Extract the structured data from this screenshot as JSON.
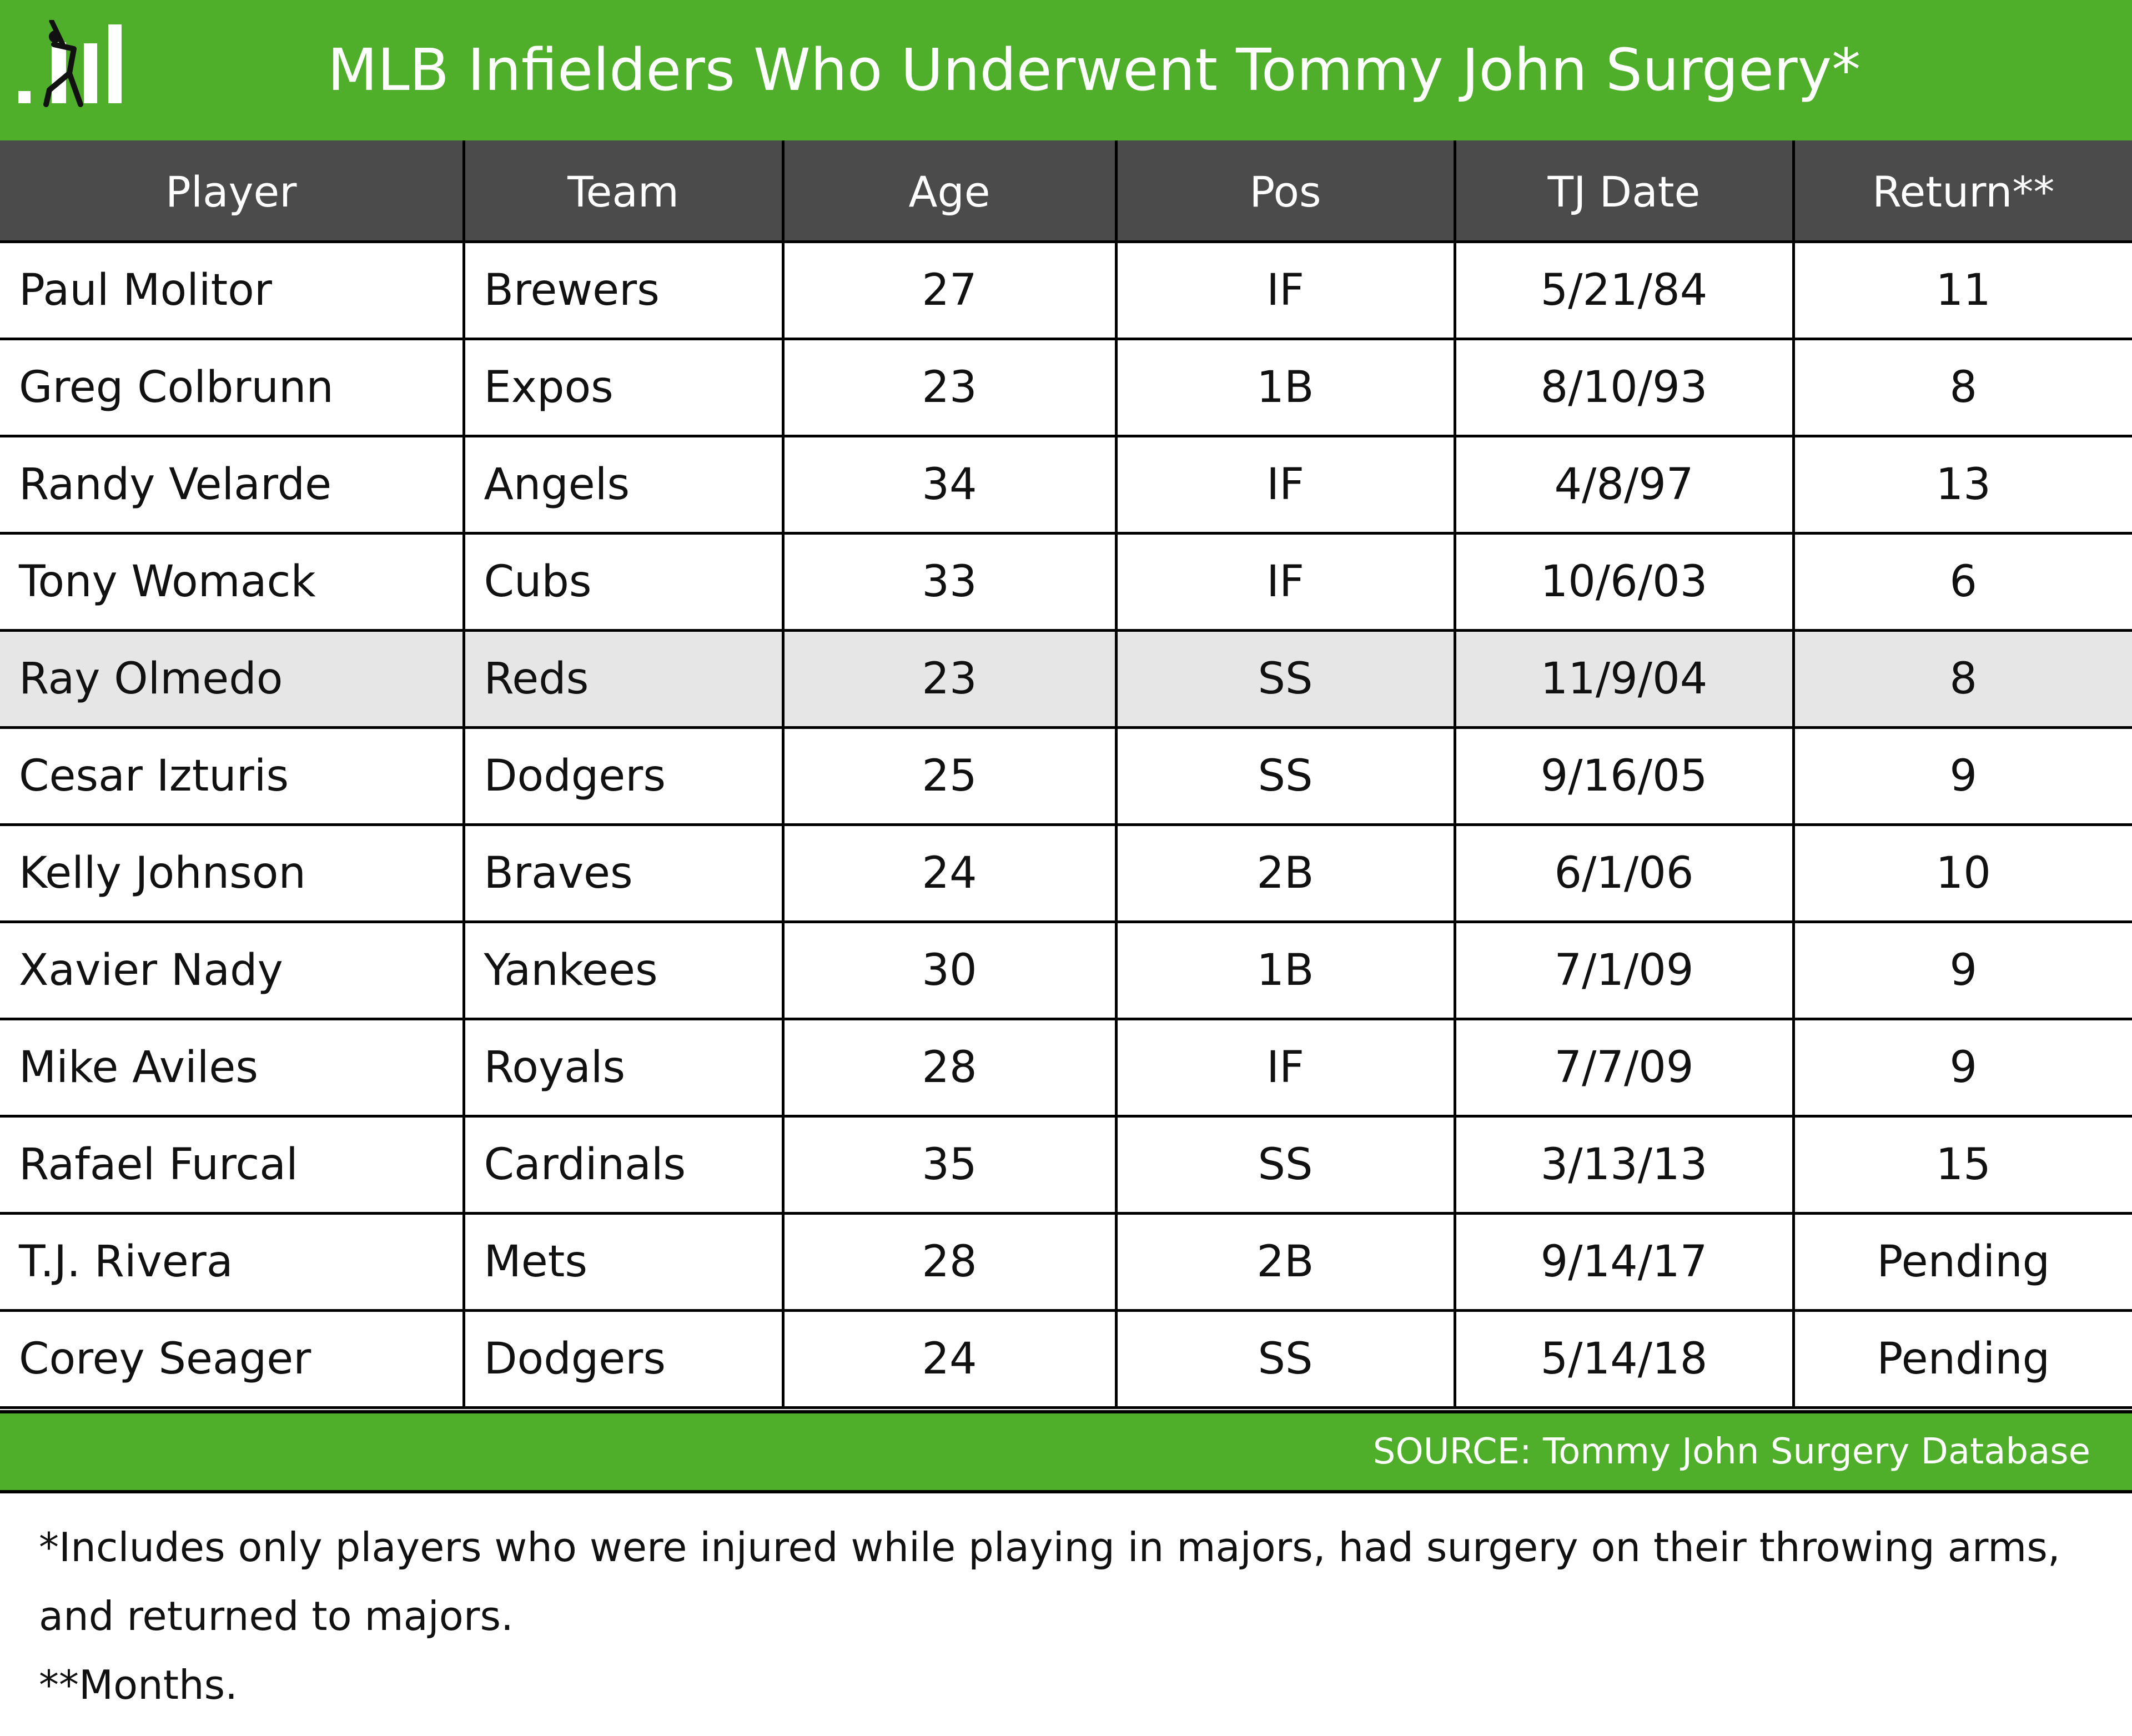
{
  "header": {
    "title": "MLB Infielders Who Underwent Tommy John Surgery*",
    "logo_icon": "batter-stats-logo-icon"
  },
  "chart_data": {
    "type": "table",
    "columns": [
      "Player",
      "Team",
      "Age",
      "Pos",
      "TJ Date",
      "Return**"
    ],
    "rows": [
      [
        "Paul Molitor",
        "Brewers",
        "27",
        "IF",
        "5/21/84",
        "11"
      ],
      [
        "Greg Colbrunn",
        "Expos",
        "23",
        "1B",
        "8/10/93",
        "8"
      ],
      [
        "Randy Velarde",
        "Angels",
        "34",
        "IF",
        "4/8/97",
        "13"
      ],
      [
        "Tony Womack",
        "Cubs",
        "33",
        "IF",
        "10/6/03",
        "6"
      ],
      [
        "Ray Olmedo",
        "Reds",
        "23",
        "SS",
        "11/9/04",
        "8"
      ],
      [
        "Cesar Izturis",
        "Dodgers",
        "25",
        "SS",
        "9/16/05",
        "9"
      ],
      [
        "Kelly Johnson",
        "Braves",
        "24",
        "2B",
        "6/1/06",
        "10"
      ],
      [
        "Xavier Nady",
        "Yankees",
        "30",
        "1B",
        "7/1/09",
        "9"
      ],
      [
        "Mike Aviles",
        "Royals",
        "28",
        "IF",
        "7/7/09",
        "9"
      ],
      [
        "Rafael Furcal",
        "Cardinals",
        "35",
        "SS",
        "3/13/13",
        "15"
      ],
      [
        "T.J. Rivera",
        "Mets",
        "28",
        "2B",
        "9/14/17",
        "Pending"
      ],
      [
        "Corey Seager",
        "Dodgers",
        "24",
        "SS",
        "5/14/18",
        "Pending"
      ]
    ],
    "highlighted_row": 4
  },
  "footer": {
    "source": "SOURCE: Tommy John Surgery Database",
    "note1": "*Includes only players who were injured while playing in majors, had surgery on their throwing arms, and returned to majors.",
    "note2": "**Months."
  },
  "colors": {
    "accent_green": "#4fae2a",
    "header_gray": "#4b4b4b",
    "highlight_row": "#e6e6e6"
  }
}
